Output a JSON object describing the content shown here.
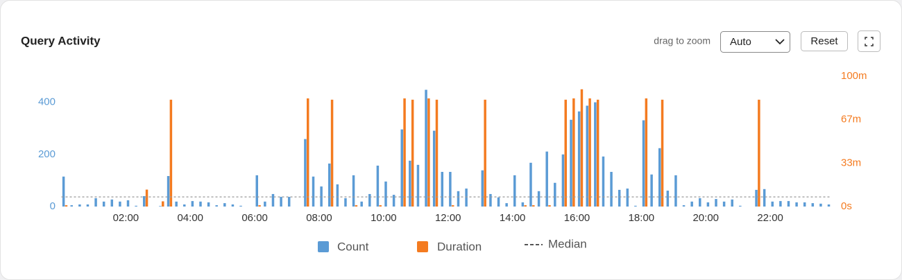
{
  "header": {
    "title": "Query Activity"
  },
  "controls": {
    "hint": "drag to zoom",
    "select": "Auto",
    "reset": "Reset"
  },
  "chart_data": {
    "type": "bar",
    "x": [
      0,
      0.25,
      0.5,
      0.75,
      1,
      1.25,
      1.5,
      1.75,
      2,
      2.25,
      2.5,
      2.75,
      3,
      3.25,
      3.5,
      3.75,
      4,
      4.25,
      4.5,
      4.75,
      5,
      5.25,
      5.5,
      5.75,
      6,
      6.25,
      6.5,
      6.75,
      7,
      7.25,
      7.5,
      7.75,
      8,
      8.25,
      8.5,
      8.75,
      9,
      9.25,
      9.5,
      9.75,
      10,
      10.25,
      10.5,
      10.75,
      11,
      11.25,
      11.5,
      11.75,
      12,
      12.25,
      12.5,
      12.75,
      13,
      13.25,
      13.5,
      13.75,
      14,
      14.25,
      14.5,
      14.75,
      15,
      15.25,
      15.5,
      15.75,
      16,
      16.25,
      16.5,
      16.75,
      17,
      17.25,
      17.5,
      17.75,
      18,
      18.25,
      18.5,
      18.75,
      19,
      19.25,
      19.5,
      19.75,
      20,
      20.25,
      20.5,
      20.75,
      21,
      21.25,
      21.5,
      21.75,
      22,
      22.25,
      22.5,
      22.75,
      23,
      23.25,
      23.5,
      23.75
    ],
    "xlim": [
      0,
      24
    ],
    "xticks": [
      {
        "value": 2,
        "label": "02:00"
      },
      {
        "value": 4,
        "label": "04:00"
      },
      {
        "value": 6,
        "label": "06:00"
      },
      {
        "value": 8,
        "label": "08:00"
      },
      {
        "value": 10,
        "label": "10:00"
      },
      {
        "value": 12,
        "label": "12:00"
      },
      {
        "value": 14,
        "label": "14:00"
      },
      {
        "value": 16,
        "label": "16:00"
      },
      {
        "value": 18,
        "label": "18:00"
      },
      {
        "value": 20,
        "label": "20:00"
      },
      {
        "value": 22,
        "label": "22:00"
      }
    ],
    "ylim": [
      0,
      500
    ],
    "yticks": [
      0,
      200,
      400
    ],
    "y2lim": [
      0,
      100
    ],
    "y2ticks": [
      {
        "value": 0,
        "label": "0s"
      },
      {
        "value": 33.33,
        "label": "33m"
      },
      {
        "value": 66.67,
        "label": "67m"
      },
      {
        "value": 100,
        "label": "100m"
      }
    ],
    "series": [
      {
        "name": "Count",
        "color": "#5b9bd5",
        "values": [
          115,
          5,
          8,
          8,
          32,
          19,
          27,
          19,
          24,
          3,
          40,
          0,
          2,
          117,
          19,
          8,
          21,
          19,
          16,
          5,
          13,
          8,
          3,
          0,
          120,
          19,
          48,
          37,
          37,
          0,
          259,
          115,
          77,
          165,
          85,
          32,
          120,
          19,
          48,
          157,
          96,
          45,
          296,
          176,
          160,
          448,
          291,
          133,
          133,
          59,
          69,
          0,
          139,
          48,
          35,
          13,
          120,
          16,
          168,
          59,
          211,
          91,
          200,
          333,
          365,
          387,
          400,
          192,
          133,
          64,
          69,
          3,
          331,
          123,
          224,
          61,
          120,
          5,
          19,
          32,
          16,
          29,
          19,
          27,
          3,
          0,
          64,
          67,
          19,
          21,
          21,
          16,
          16,
          13,
          11,
          8
        ]
      },
      {
        "name": "Duration",
        "color": "#f47b20",
        "axis": "y2",
        "values": [
          1,
          0,
          0,
          0,
          0,
          0,
          0,
          0,
          0,
          0,
          13,
          0,
          4,
          82,
          0,
          0,
          0,
          0,
          0,
          0,
          0,
          0,
          0,
          0,
          1,
          0,
          0,
          0,
          0,
          0,
          83,
          0,
          0,
          82,
          0,
          0,
          1,
          0,
          0,
          1,
          0,
          0,
          83,
          82,
          0,
          83,
          82,
          0,
          1,
          0,
          0,
          0,
          82,
          0,
          0,
          0,
          0,
          1,
          1,
          0,
          1,
          0,
          82,
          83,
          90,
          83,
          82,
          0,
          0,
          0,
          0,
          0,
          83,
          0,
          82,
          0,
          0,
          0,
          0,
          0,
          0,
          0,
          0,
          0,
          0,
          0,
          82,
          0,
          0,
          0,
          0,
          0,
          0,
          0,
          0,
          0
        ]
      }
    ],
    "median": {
      "name": "Median",
      "value": 37,
      "color": "#999999"
    }
  }
}
